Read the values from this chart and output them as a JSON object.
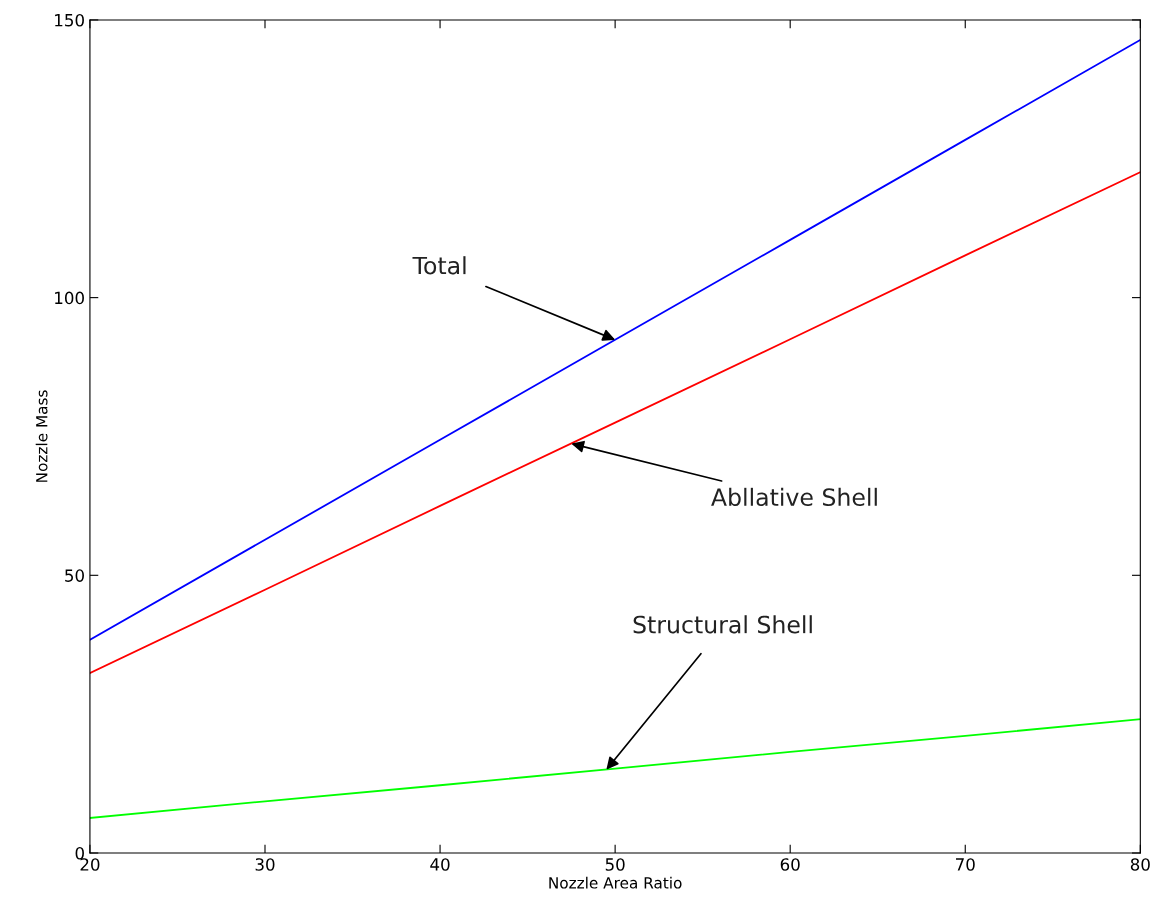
{
  "chart_data": {
    "type": "line",
    "xlabel": "Nozzle Area Ratio",
    "ylabel": "Nozzle Mass",
    "x": [
      20,
      30,
      40,
      50,
      60,
      70,
      80
    ],
    "series": [
      {
        "color": "#0000ff",
        "values": [
          38.4,
          56.4,
          74.4,
          92.4,
          110.4,
          128.4,
          146.4
        ]
      },
      {
        "color": "#ff0000",
        "values": [
          32.4,
          47.4,
          62.5,
          77.5,
          92.5,
          107.6,
          122.6
        ]
      },
      {
        "color": "#00ff00",
        "values": [
          6.3,
          9.3,
          12.2,
          15.2,
          18.2,
          21.1,
          24.1
        ]
      }
    ],
    "annotations": [
      {
        "text": "Total",
        "x": 50,
        "y": 92.4
      },
      {
        "text": "Abllative Shell",
        "x": 47.5,
        "y": 73.7
      },
      {
        "text": "Structural Shell",
        "x": 49.5,
        "y": 15
      }
    ],
    "xlim": [
      20,
      80
    ],
    "ylim": [
      0,
      150
    ],
    "xticks": [
      20,
      30,
      40,
      50,
      60,
      70,
      80
    ],
    "yticks": [
      0,
      50,
      100,
      150
    ],
    "grid": false,
    "marker": "none",
    "line_style": "solid"
  }
}
